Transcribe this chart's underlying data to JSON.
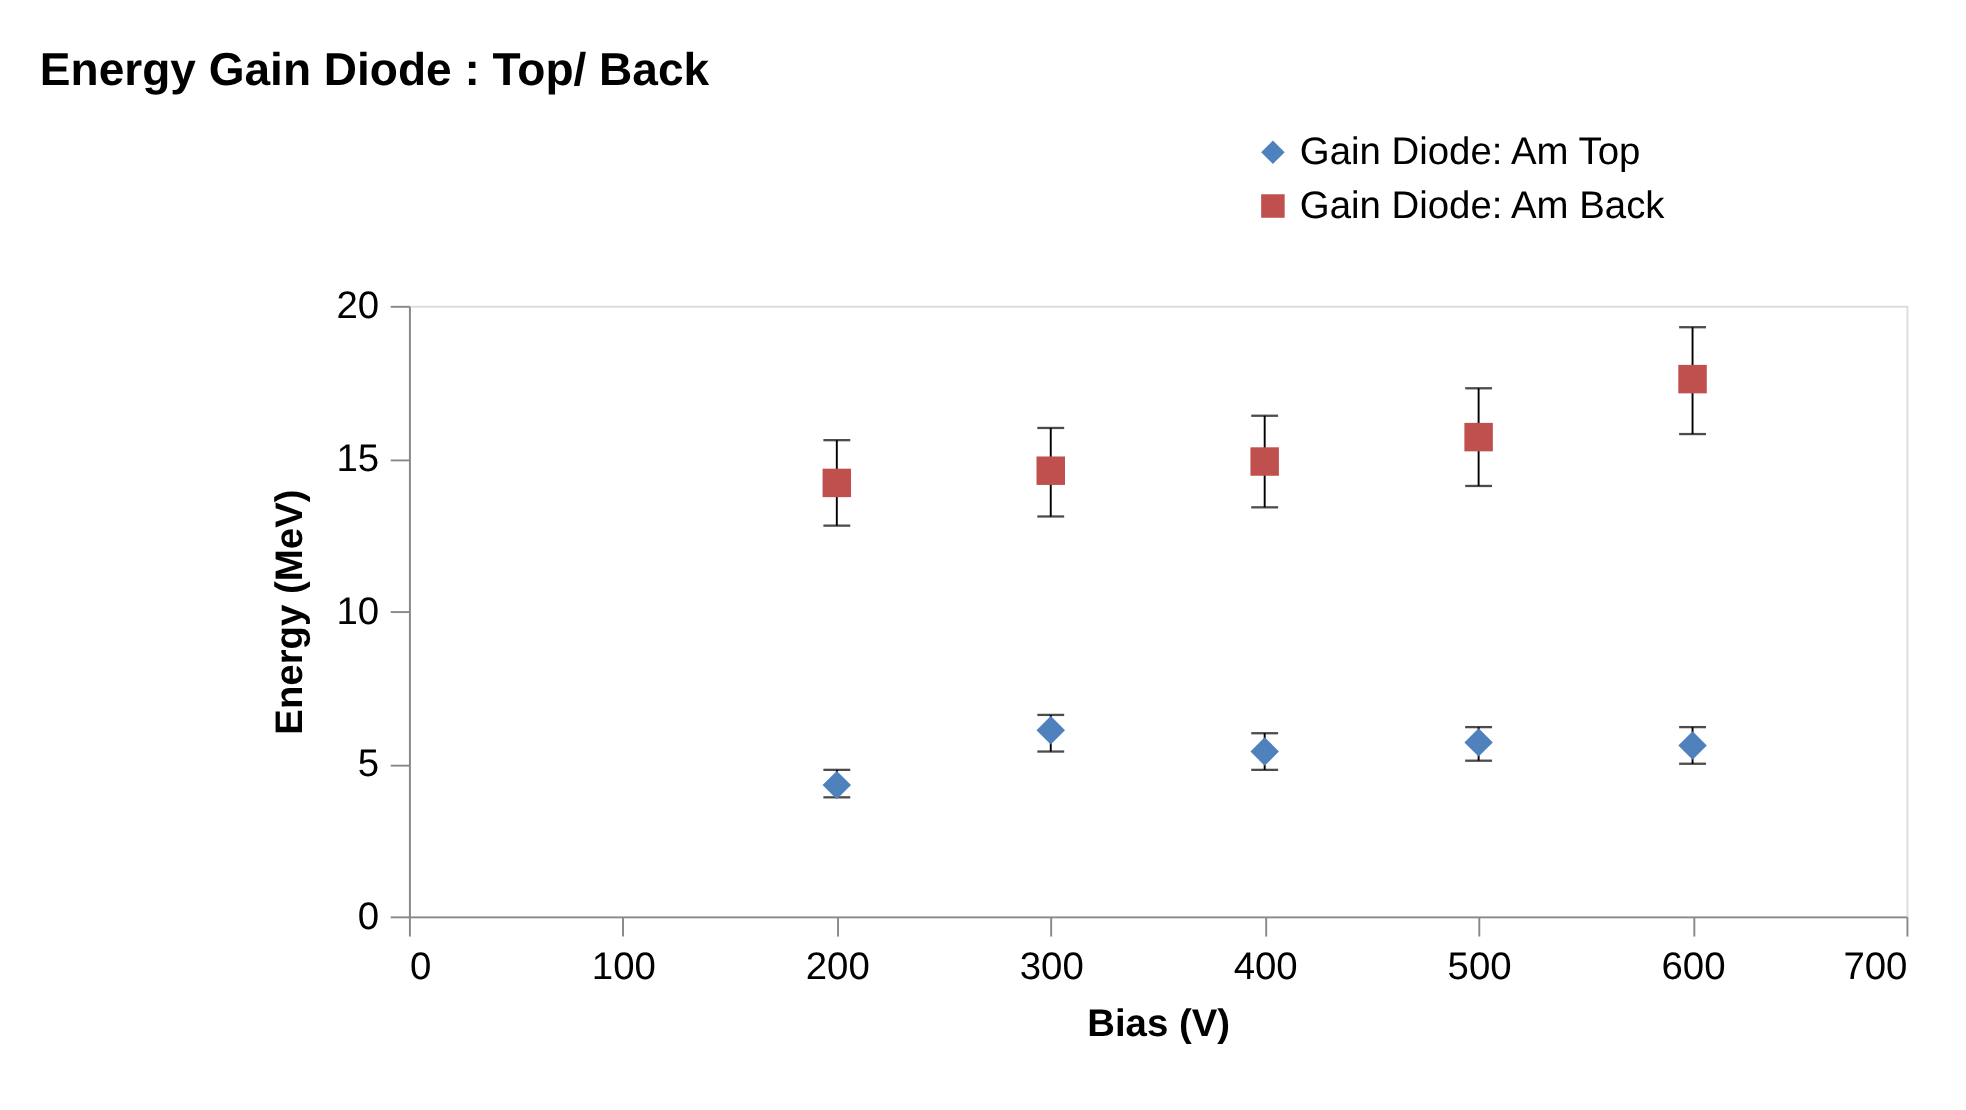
{
  "chart_data": {
    "type": "scatter",
    "title": "Energy Gain Diode : Top/ Back",
    "xlabel": "Bias (V)",
    "ylabel": "Energy (MeV)",
    "x": [
      200,
      300,
      400,
      500,
      600
    ],
    "series": [
      {
        "name": "Gain Diode: Am Top",
        "color": "#4f81bd",
        "marker": "diamond",
        "values": [
          4.3,
          6.1,
          5.4,
          5.7,
          5.6
        ],
        "errors": [
          [
            3.9,
            4.8
          ],
          [
            5.4,
            6.6
          ],
          [
            4.8,
            6.0
          ],
          [
            5.1,
            6.2
          ],
          [
            5.0,
            6.2
          ]
        ]
      },
      {
        "name": "Gain Diode: Am Back",
        "color": "#c0504d",
        "marker": "square",
        "values": [
          14.2,
          14.6,
          14.9,
          15.7,
          17.6
        ],
        "errors": [
          [
            12.8,
            15.6
          ],
          [
            13.1,
            16.0
          ],
          [
            13.4,
            16.4
          ],
          [
            14.1,
            17.3
          ],
          [
            15.8,
            19.3
          ]
        ]
      }
    ],
    "xlim": [
      0,
      700
    ],
    "xticks": [
      0,
      100,
      200,
      300,
      400,
      500,
      600,
      700
    ],
    "ylim": [
      0,
      20
    ],
    "yticks": [
      0,
      5,
      10,
      15,
      20
    ],
    "grid": false,
    "legend": "top right"
  }
}
